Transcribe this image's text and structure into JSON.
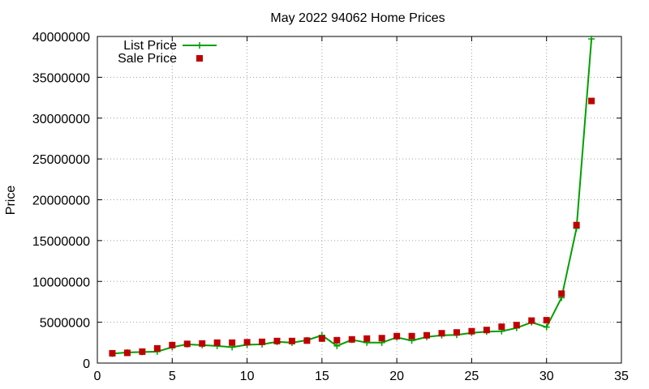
{
  "chart_data": {
    "type": "line",
    "title": "May 2022 94062 Home Prices",
    "xlabel": "",
    "ylabel": "Price",
    "xlim": [
      0,
      35
    ],
    "ylim": [
      0,
      40000000
    ],
    "xticks": [
      "0",
      "5",
      "10",
      "15",
      "20",
      "25",
      "30",
      "35"
    ],
    "yticks": [
      "0",
      "5000000",
      "10000000",
      "15000000",
      "20000000",
      "25000000",
      "30000000",
      "35000000",
      "40000000"
    ],
    "grid": true,
    "legend_position": "top-left",
    "series": [
      {
        "name": "List Price",
        "style": "line-with-plus-markers",
        "color": "#00a000",
        "x": [
          1,
          2,
          3,
          4,
          5,
          6,
          7,
          8,
          9,
          10,
          11,
          12,
          13,
          14,
          15,
          16,
          17,
          18,
          19,
          20,
          21,
          22,
          23,
          24,
          25,
          26,
          27,
          28,
          29,
          30,
          31,
          32,
          33
        ],
        "y": [
          1150000,
          1300000,
          1350000,
          1400000,
          1950000,
          2300000,
          2200000,
          2100000,
          1950000,
          2250000,
          2300000,
          2600000,
          2500000,
          2800000,
          3400000,
          2100000,
          2850000,
          2500000,
          2500000,
          3150000,
          2750000,
          3200000,
          3400000,
          3450000,
          3700000,
          3850000,
          3900000,
          4300000,
          5000000,
          4400000,
          8000000,
          16500000,
          39700000
        ]
      },
      {
        "name": "Sale Price",
        "style": "square-markers",
        "color": "#c00000",
        "x": [
          1,
          2,
          3,
          4,
          5,
          6,
          7,
          8,
          9,
          10,
          11,
          12,
          13,
          14,
          15,
          16,
          17,
          18,
          19,
          20,
          21,
          22,
          23,
          24,
          25,
          26,
          27,
          28,
          29,
          30,
          31,
          32,
          33
        ],
        "y": [
          1200000,
          1250000,
          1400000,
          1800000,
          2200000,
          2350000,
          2400000,
          2500000,
          2500000,
          2550000,
          2600000,
          2700000,
          2700000,
          2750000,
          3000000,
          2800000,
          2900000,
          3000000,
          3050000,
          3300000,
          3300000,
          3400000,
          3650000,
          3750000,
          3900000,
          4050000,
          4450000,
          4650000,
          5200000,
          5250000,
          8500000,
          16900000,
          32100000
        ]
      }
    ]
  }
}
